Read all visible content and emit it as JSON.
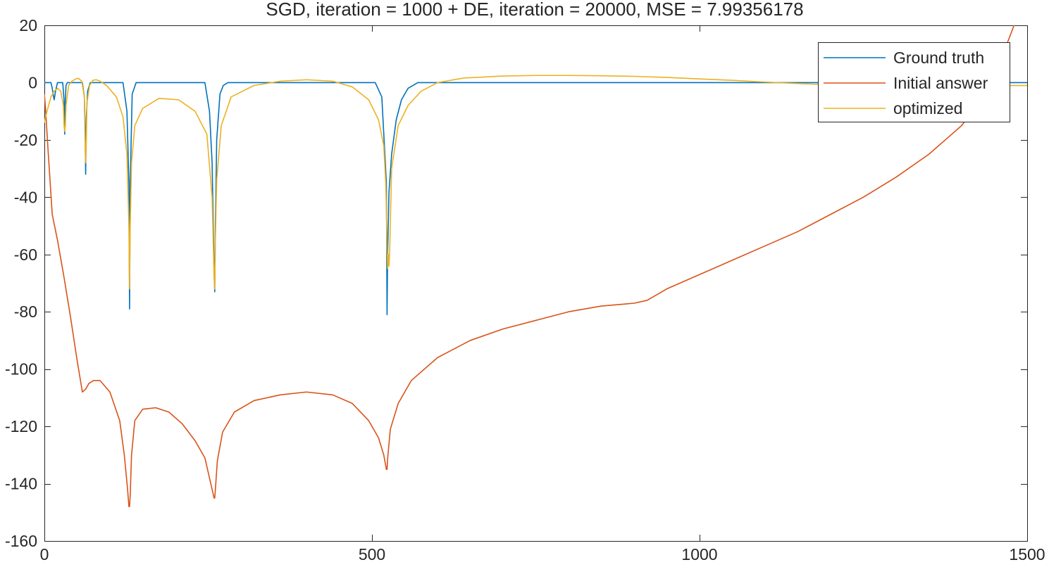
{
  "chart_data": {
    "type": "line",
    "title": "SGD, iteration = 1000 + DE, iteration = 20000, MSE = 7.99356178",
    "xlabel": "",
    "ylabel": "",
    "xlim": [
      0,
      1500
    ],
    "ylim": [
      -160,
      20
    ],
    "xticks": [
      0,
      500,
      1000,
      1500
    ],
    "yticks": [
      -160,
      -140,
      -120,
      -100,
      -80,
      -60,
      -40,
      -20,
      0,
      20
    ],
    "grid": false,
    "legend_position": "top-right",
    "series": [
      {
        "name": "Ground truth",
        "color": "#0072BD",
        "x": [
          0,
          10,
          12,
          14,
          15,
          17,
          20,
          28,
          30,
          31,
          32,
          33,
          35,
          40,
          58,
          61,
          62,
          63,
          64,
          66,
          70,
          120,
          126,
          129,
          130,
          131,
          134,
          140,
          245,
          252,
          256,
          259,
          260,
          261,
          263,
          268,
          273,
          280,
          505,
          515,
          522,
          523,
          524,
          526,
          530,
          537,
          545,
          555,
          570,
          1500
        ],
        "y": [
          0,
          0,
          -2,
          -5,
          -6,
          -3,
          0,
          0,
          -6,
          -18,
          -6,
          -1,
          0,
          0,
          0,
          -5,
          -15,
          -32,
          -12,
          -3,
          0,
          0,
          -10,
          -35,
          -79,
          -35,
          -4,
          0,
          0,
          -10,
          -28,
          -65,
          -73,
          -50,
          -20,
          -4,
          -1,
          0,
          0,
          -5,
          -35,
          -81,
          -58,
          -38,
          -25,
          -13,
          -6,
          -2,
          0,
          0
        ]
      },
      {
        "name": "Initial answer",
        "color": "#D95319",
        "x": [
          0,
          2,
          6,
          12,
          20,
          30,
          40,
          50,
          58,
          63,
          68,
          75,
          85,
          100,
          115,
          122,
          127,
          129,
          130,
          131,
          133,
          138,
          150,
          170,
          190,
          210,
          230,
          245,
          255,
          259,
          260,
          261,
          264,
          272,
          290,
          320,
          360,
          400,
          440,
          470,
          495,
          510,
          518,
          522,
          523,
          524,
          528,
          540,
          560,
          600,
          650,
          700,
          750,
          800,
          850,
          900,
          920,
          950,
          1000,
          1050,
          1100,
          1150,
          1200,
          1250,
          1300,
          1350,
          1380,
          1400,
          1420,
          1440,
          1460,
          1480,
          1500
        ],
        "y": [
          -4,
          -10,
          -25,
          -46,
          -55,
          -68,
          -82,
          -97,
          -108,
          -107,
          -105,
          -104,
          -104,
          -108,
          -118,
          -130,
          -142,
          -148,
          -148,
          -144,
          -130,
          -118,
          -114,
          -113.5,
          -115,
          -119,
          -125,
          -131,
          -141,
          -145,
          -145,
          -142,
          -132,
          -122,
          -115,
          -111,
          -109,
          -108,
          -109,
          -112,
          -118,
          -124,
          -130,
          -135,
          -135,
          -131,
          -121,
          -112,
          -104,
          -96,
          -90,
          -86,
          -83,
          -80,
          -78,
          -77,
          -76,
          -72,
          -67,
          -62,
          -57,
          -52,
          -46,
          -40,
          -33,
          -25,
          -19,
          -15,
          -9,
          -2,
          8,
          20,
          33
        ]
      },
      {
        "name": "optimized",
        "color": "#EDB120",
        "x": [
          0,
          4,
          10,
          15,
          20,
          25,
          29,
          30,
          31,
          32,
          33,
          37,
          42,
          48,
          52,
          57,
          61,
          62,
          63,
          64,
          65,
          69,
          74,
          79,
          85,
          95,
          110,
          120,
          126,
          129,
          130,
          131,
          133,
          138,
          150,
          175,
          205,
          230,
          248,
          256,
          259,
          260,
          261,
          263,
          270,
          285,
          320,
          360,
          400,
          440,
          470,
          495,
          510,
          518,
          521,
          522,
          523,
          524,
          525,
          526,
          527,
          530,
          540,
          555,
          575,
          600,
          640,
          700,
          750,
          800,
          850,
          900,
          950,
          1000,
          1050,
          1100,
          1150,
          1200,
          1230,
          1250,
          1500
        ],
        "y": [
          -14,
          -10,
          -5,
          -3,
          -2,
          -3,
          -8,
          -15,
          -17,
          -15,
          -8,
          -1,
          0.5,
          1.3,
          1.5,
          0.5,
          -5,
          -20,
          -28,
          -20,
          -7,
          -1,
          0.8,
          1.0,
          0.5,
          -1,
          -5,
          -12,
          -25,
          -50,
          -72,
          -50,
          -28,
          -15,
          -9,
          -5.5,
          -6,
          -10,
          -18,
          -40,
          -68,
          -72,
          -55,
          -34,
          -15,
          -5,
          -1,
          0.5,
          1.0,
          0.5,
          -1.5,
          -6,
          -13,
          -22,
          -35,
          -44,
          -58,
          -65,
          -60,
          -64,
          -59,
          -30,
          -15,
          -8,
          -3,
          0,
          1.6,
          2.3,
          2.5,
          2.5,
          2.4,
          2.2,
          1.8,
          1.3,
          0.8,
          0.2,
          -0.3,
          -0.8,
          -1.0,
          -1.0,
          -1.0
        ]
      }
    ]
  }
}
